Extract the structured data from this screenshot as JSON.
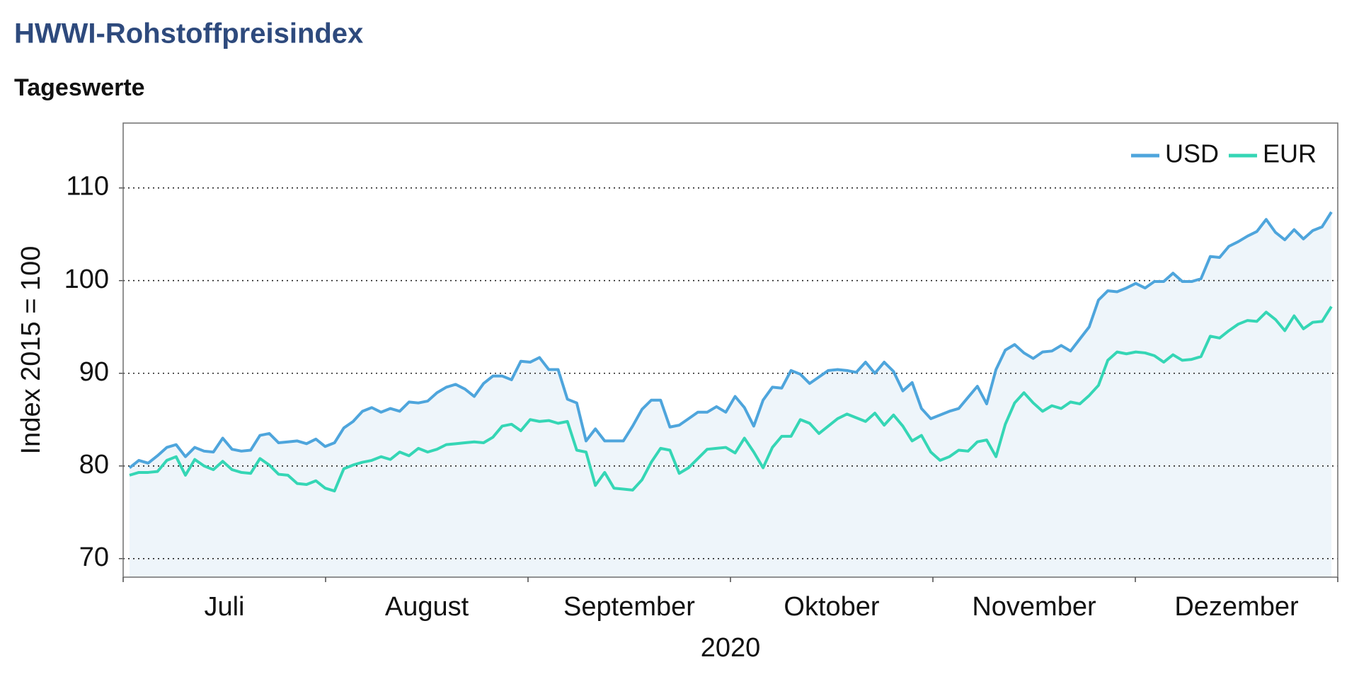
{
  "chart_data": {
    "type": "line",
    "title": "HWWI-Rohstoffpreisindex",
    "subtitle": "Tageswerte",
    "ylabel": "Index 2015 = 100",
    "xlabel": "2020",
    "xtick_labels": [
      "Juli",
      "August",
      "September",
      "Oktober",
      "November",
      "Dezember"
    ],
    "ylim": [
      68,
      117
    ],
    "yticks": [
      70,
      80,
      90,
      100,
      110
    ],
    "grid": true,
    "legend": "upper right",
    "area_color": "#eef5fa",
    "series": [
      {
        "name": "USD",
        "color": "#4ea5dc",
        "values": [
          79.8,
          80.6,
          80.3,
          81.1,
          82.0,
          82.3,
          81.0,
          82.0,
          81.6,
          81.5,
          83.0,
          81.8,
          81.6,
          81.7,
          83.3,
          83.5,
          82.5,
          82.6,
          82.7,
          82.4,
          82.9,
          82.1,
          82.5,
          84.1,
          84.8,
          85.9,
          86.3,
          85.8,
          86.2,
          85.9,
          86.9,
          86.8,
          87.0,
          87.9,
          88.5,
          88.8,
          88.3,
          87.5,
          88.9,
          89.7,
          89.7,
          89.3,
          91.3,
          91.2,
          91.7,
          90.4,
          90.4,
          87.2,
          86.8,
          82.7,
          84.0,
          82.7,
          82.7,
          82.7,
          84.3,
          86.1,
          87.1,
          87.1,
          84.2,
          84.4,
          85.1,
          85.8,
          85.8,
          86.4,
          85.8,
          87.5,
          86.3,
          84.3,
          87.1,
          88.5,
          88.4,
          90.3,
          89.9,
          88.9,
          89.6,
          90.3,
          90.4,
          90.3,
          90.1,
          91.2,
          90.0,
          91.2,
          90.2,
          88.1,
          89.0,
          86.2,
          85.1,
          85.5,
          85.9,
          86.2,
          87.4,
          88.6,
          86.7,
          90.4,
          92.5,
          93.1,
          92.2,
          91.6,
          92.3,
          92.4,
          93.0,
          92.4,
          93.7,
          95.0,
          97.9,
          98.9,
          98.8,
          99.2,
          99.7,
          99.2,
          99.9,
          99.9,
          100.8,
          99.9,
          99.9,
          100.2,
          102.6,
          102.5,
          103.7,
          104.2,
          104.8,
          105.3,
          106.6,
          105.2,
          104.4,
          105.5,
          104.5,
          105.4,
          105.8,
          107.4
        ]
      },
      {
        "name": "EUR",
        "color": "#35d6b5",
        "values": [
          79.0,
          79.3,
          79.3,
          79.4,
          80.6,
          81.0,
          79.0,
          80.7,
          80.0,
          79.6,
          80.5,
          79.6,
          79.3,
          79.2,
          80.8,
          80.1,
          79.1,
          79.0,
          78.1,
          78.0,
          78.4,
          77.6,
          77.3,
          79.7,
          80.1,
          80.4,
          80.6,
          81.0,
          80.7,
          81.5,
          81.1,
          81.9,
          81.5,
          81.8,
          82.3,
          82.4,
          82.5,
          82.6,
          82.5,
          83.1,
          84.3,
          84.5,
          83.8,
          85.0,
          84.8,
          84.9,
          84.6,
          84.8,
          81.7,
          81.5,
          77.9,
          79.3,
          77.6,
          77.5,
          77.4,
          78.5,
          80.4,
          81.9,
          81.7,
          79.2,
          79.8,
          80.8,
          81.8,
          81.9,
          82.0,
          81.4,
          83.0,
          81.5,
          79.8,
          82.0,
          83.2,
          83.2,
          85.0,
          84.6,
          83.5,
          84.3,
          85.1,
          85.6,
          85.2,
          84.8,
          85.7,
          84.4,
          85.5,
          84.3,
          82.7,
          83.3,
          81.5,
          80.6,
          81.0,
          81.7,
          81.6,
          82.6,
          82.8,
          81.0,
          84.5,
          86.8,
          87.9,
          86.8,
          85.9,
          86.5,
          86.2,
          86.9,
          86.7,
          87.6,
          88.7,
          91.4,
          92.3,
          92.1,
          92.3,
          92.2,
          91.9,
          91.2,
          92.0,
          91.4,
          91.5,
          91.8,
          94.0,
          93.8,
          94.6,
          95.3,
          95.7,
          95.6,
          96.6,
          95.8,
          94.6,
          96.2,
          94.8,
          95.5,
          95.6,
          97.2
        ]
      }
    ]
  }
}
